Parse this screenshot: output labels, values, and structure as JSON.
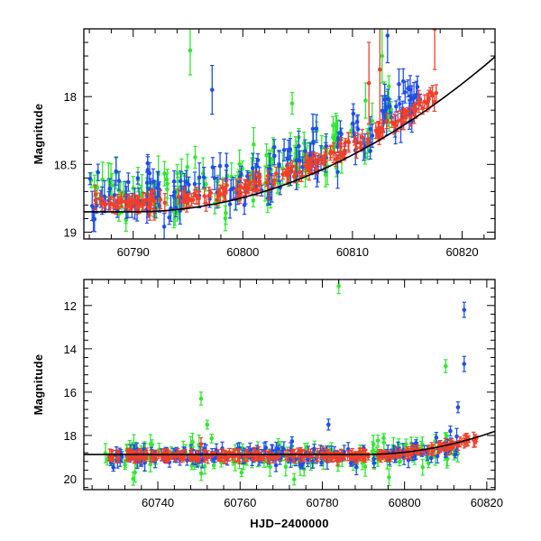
{
  "colors": {
    "green": "#33e633",
    "blue": "#1f4fe6",
    "red": "#f0402a",
    "model": "#000000",
    "frame": "#000000"
  },
  "chart_data": [
    {
      "type": "scatter",
      "ylabel": "Magnitude",
      "xlabel": "",
      "xlim": [
        60785.5,
        60823
      ],
      "ylim": [
        19.05,
        17.5
      ],
      "y_inverted": true,
      "xticks": [
        60790,
        60800,
        60810,
        60820
      ],
      "yticks": [
        18,
        18.5,
        19
      ],
      "xtick_labels": [
        "60790",
        "60800",
        "60810",
        "60820"
      ],
      "ytick_labels": [
        "18",
        "18.5",
        "19"
      ],
      "model_curve": {
        "color": "black",
        "x_min_tau": 60785.5,
        "base_mag": 18.85,
        "tau": 60790,
        "amp": 0.00105,
        "power": 2
      },
      "series": [
        {
          "name": "",
          "color": "green",
          "x_range": [
            60786,
            60814
          ],
          "y_mean": 18.72,
          "y_spread": 0.18,
          "err": 0.09,
          "count": 130,
          "outliers": [
            [
              60795.2,
              17.66,
              0.18
            ],
            [
              60812.7,
              17.7,
              0.2
            ],
            [
              60804.5,
              18.05,
              0.08
            ]
          ]
        },
        {
          "name": "",
          "color": "blue",
          "x_range": [
            60786,
            60816.5
          ],
          "y_mean": 18.72,
          "y_spread": 0.17,
          "err": 0.08,
          "count": 170,
          "outliers": [
            [
              60797.2,
              17.95,
              0.18
            ],
            [
              60813.2,
              17.55,
              0.2
            ],
            [
              60815.2,
              18.1,
              0.08
            ]
          ]
        },
        {
          "name": "",
          "color": "red",
          "x_range": [
            60786,
            60817.8
          ],
          "y_mean": 18.78,
          "y_spread": 0.05,
          "err": 0.05,
          "count": 190,
          "outliers": [
            [
              60811.5,
              17.9,
              0.3
            ],
            [
              60812.5,
              17.8,
              0.4
            ],
            [
              60817.5,
              17.5,
              0.3
            ]
          ]
        }
      ]
    },
    {
      "type": "scatter",
      "ylabel": "Magnitude",
      "xlabel": "HJD−2400000",
      "xlim": [
        60722,
        60822
      ],
      "ylim": [
        20.5,
        10.8
      ],
      "y_inverted": true,
      "xticks": [
        60740,
        60760,
        60780,
        60800,
        60820
      ],
      "yticks": [
        12,
        14,
        16,
        18,
        20
      ],
      "xtick_labels": [
        "60740",
        "60760",
        "60780",
        "60800",
        "60820"
      ],
      "ytick_labels": [
        "12",
        "14",
        "16",
        "18",
        "20"
      ],
      "model_curve": {
        "color": "black",
        "x_min_tau": 60722,
        "base_mag": 18.88,
        "tau": 60790,
        "amp": 0.00105,
        "power": 2
      },
      "series": [
        {
          "name": "",
          "color": "green",
          "x_range": [
            60727,
            60814
          ],
          "y_mean": 18.95,
          "y_spread": 0.7,
          "err": 0.3,
          "count": 150,
          "outliers": [
            [
              60784,
              11.1,
              0.35
            ],
            [
              60810,
              14.8,
              0.3
            ],
            [
              60750.5,
              16.3,
              0.3
            ],
            [
              60752,
              17.5,
              0.2
            ],
            [
              60734,
              20.0,
              0.3
            ]
          ]
        },
        {
          "name": "",
          "color": "blue",
          "x_range": [
            60728,
            60815
          ],
          "y_mean": 18.95,
          "y_spread": 0.45,
          "err": 0.25,
          "count": 180,
          "outliers": [
            [
              60814.5,
              12.2,
              0.35
            ],
            [
              60814.5,
              14.7,
              0.35
            ],
            [
              60813,
              16.7,
              0.25
            ],
            [
              60781.5,
              17.5,
              0.25
            ]
          ]
        },
        {
          "name": "",
          "color": "red",
          "x_range": [
            60728,
            60817.5
          ],
          "y_mean": 18.93,
          "y_spread": 0.12,
          "err": 0.2,
          "count": 230,
          "outliers": [
            [
              60816.8,
              18.2,
              0.35
            ],
            [
              60750.5,
              18.4,
              0.3
            ]
          ]
        }
      ]
    }
  ]
}
